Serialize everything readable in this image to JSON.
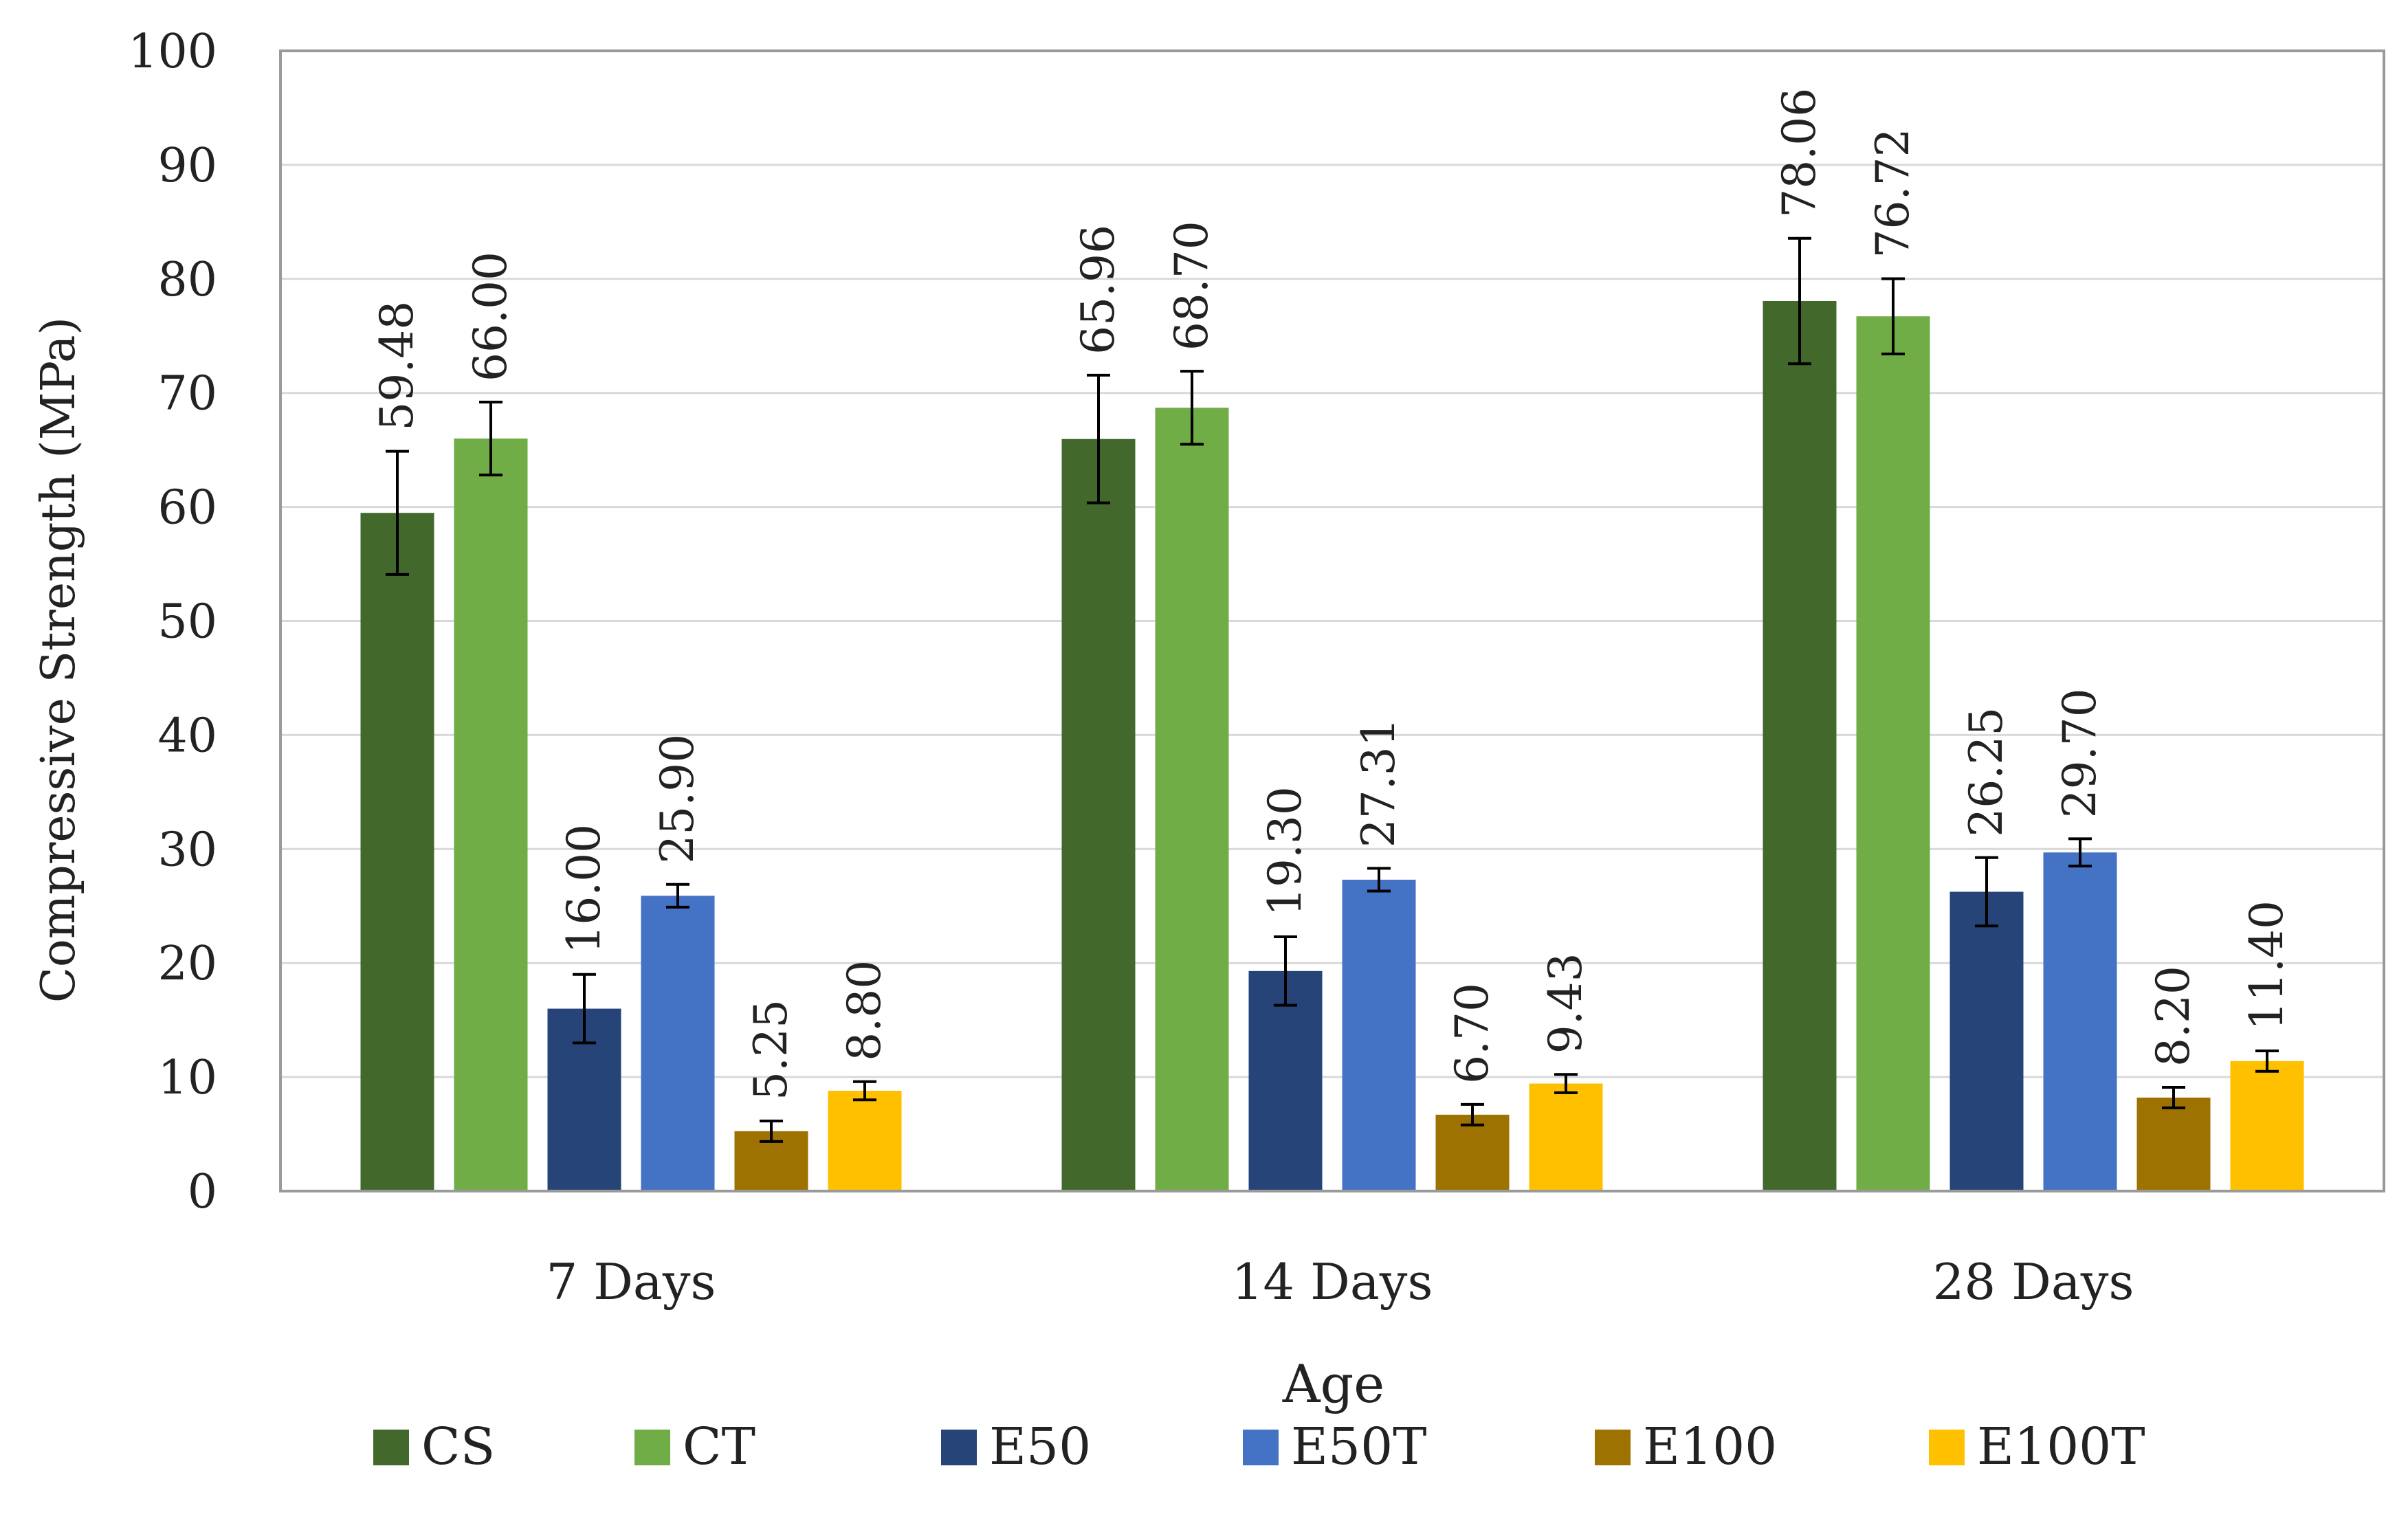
{
  "chart_data": {
    "type": "bar",
    "title": "",
    "xlabel": "Age",
    "ylabel": "Compressive Strength (MPa)",
    "ylim": [
      0,
      100
    ],
    "yticks": [
      0,
      10,
      20,
      30,
      40,
      50,
      60,
      70,
      80,
      90,
      100
    ],
    "grid": true,
    "legend_position": "bottom",
    "categories": [
      "7 Days",
      "14 Days",
      "28 Days"
    ],
    "series": [
      {
        "name": "CS",
        "color": "#43682B",
        "values": [
          59.48,
          65.96,
          78.06
        ],
        "errors": [
          5.4,
          5.6,
          5.5
        ],
        "labels": [
          "59.48",
          "65.96",
          "78.06"
        ]
      },
      {
        "name": "CT",
        "color": "#70AD47",
        "values": [
          66.0,
          68.7,
          76.72
        ],
        "errors": [
          3.2,
          3.2,
          3.3
        ],
        "labels": [
          "66.00",
          "68.70",
          "76.72"
        ]
      },
      {
        "name": "E50",
        "color": "#264478",
        "values": [
          16.0,
          19.3,
          26.25
        ],
        "errors": [
          3.0,
          3.0,
          3.0
        ],
        "labels": [
          "16.00",
          "19.30",
          "26.25"
        ]
      },
      {
        "name": "E50T",
        "color": "#4472C4",
        "values": [
          25.9,
          27.31,
          29.7
        ],
        "errors": [
          1.0,
          1.0,
          1.2
        ],
        "labels": [
          "25.90",
          "27.31",
          "29.70"
        ]
      },
      {
        "name": "E100",
        "color": "#9E7200",
        "values": [
          5.25,
          6.7,
          8.2
        ],
        "errors": [
          0.9,
          0.9,
          0.9
        ],
        "labels": [
          "5.25",
          "6.70",
          "8.20"
        ]
      },
      {
        "name": "E100T",
        "color": "#FFC000",
        "values": [
          8.8,
          9.43,
          11.4
        ],
        "errors": [
          0.8,
          0.8,
          0.9
        ],
        "labels": [
          "8.80",
          "9.43",
          "11.40"
        ]
      }
    ]
  }
}
